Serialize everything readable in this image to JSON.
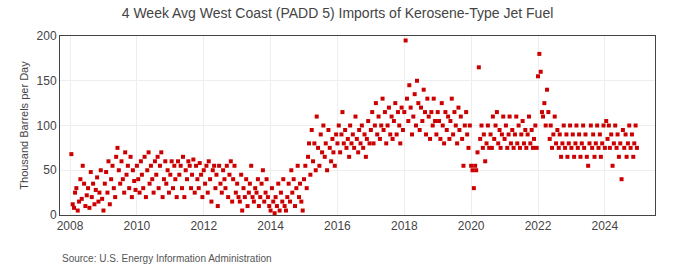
{
  "chart_data": {
    "type": "scatter",
    "title": "4 Week Avg West Coast (PADD 5) Imports of Kerosene-Type Jet Fuel",
    "ylabel": "Thousand Barrels per Day",
    "annotations": [
      "Source: U.S. Energy Information Administration"
    ],
    "color": "#CC0000",
    "marker": "square",
    "grid": true,
    "xlim": [
      2007.7,
      2025.5
    ],
    "ylim": [
      0,
      200
    ],
    "xticks": [
      2008,
      2010,
      2012,
      2014,
      2016,
      2018,
      2020,
      2022,
      2024
    ],
    "yticks": [
      0,
      50,
      100,
      150,
      200
    ],
    "x": [
      2008.04,
      2008.08,
      2008.12,
      2008.15,
      2008.19,
      2008.23,
      2008.27,
      2008.31,
      2008.35,
      2008.38,
      2008.42,
      2008.46,
      2008.5,
      2008.54,
      2008.58,
      2008.62,
      2008.65,
      2008.69,
      2008.73,
      2008.77,
      2008.81,
      2008.85,
      2008.88,
      2008.92,
      2008.96,
      2009.0,
      2009.04,
      2009.08,
      2009.12,
      2009.15,
      2009.19,
      2009.23,
      2009.27,
      2009.31,
      2009.35,
      2009.38,
      2009.42,
      2009.46,
      2009.5,
      2009.54,
      2009.58,
      2009.62,
      2009.65,
      2009.69,
      2009.73,
      2009.77,
      2009.81,
      2009.85,
      2009.88,
      2009.92,
      2009.96,
      2010.0,
      2010.04,
      2010.08,
      2010.12,
      2010.15,
      2010.19,
      2010.23,
      2010.27,
      2010.31,
      2010.35,
      2010.38,
      2010.42,
      2010.46,
      2010.5,
      2010.54,
      2010.58,
      2010.62,
      2010.65,
      2010.69,
      2010.73,
      2010.77,
      2010.81,
      2010.85,
      2010.88,
      2010.92,
      2010.96,
      2011.0,
      2011.04,
      2011.08,
      2011.12,
      2011.15,
      2011.19,
      2011.23,
      2011.27,
      2011.31,
      2011.35,
      2011.38,
      2011.42,
      2011.46,
      2011.5,
      2011.54,
      2011.58,
      2011.62,
      2011.65,
      2011.69,
      2011.73,
      2011.77,
      2011.81,
      2011.85,
      2011.88,
      2011.92,
      2011.96,
      2012.0,
      2012.04,
      2012.08,
      2012.12,
      2012.15,
      2012.19,
      2012.23,
      2012.27,
      2012.31,
      2012.35,
      2012.38,
      2012.42,
      2012.46,
      2012.5,
      2012.54,
      2012.58,
      2012.62,
      2012.65,
      2012.69,
      2012.73,
      2012.77,
      2012.81,
      2012.85,
      2012.88,
      2012.92,
      2012.96,
      2013.0,
      2013.04,
      2013.08,
      2013.12,
      2013.15,
      2013.19,
      2013.23,
      2013.27,
      2013.31,
      2013.35,
      2013.38,
      2013.42,
      2013.46,
      2013.5,
      2013.54,
      2013.58,
      2013.62,
      2013.65,
      2013.69,
      2013.73,
      2013.77,
      2013.81,
      2013.85,
      2013.88,
      2013.92,
      2013.96,
      2014.0,
      2014.04,
      2014.08,
      2014.12,
      2014.15,
      2014.19,
      2014.23,
      2014.27,
      2014.31,
      2014.35,
      2014.38,
      2014.42,
      2014.46,
      2014.5,
      2014.54,
      2014.58,
      2014.62,
      2014.65,
      2014.69,
      2014.73,
      2014.77,
      2014.81,
      2014.85,
      2014.88,
      2014.92,
      2014.96,
      2015.0,
      2015.04,
      2015.08,
      2015.12,
      2015.15,
      2015.19,
      2015.23,
      2015.27,
      2015.31,
      2015.35,
      2015.38,
      2015.42,
      2015.46,
      2015.5,
      2015.54,
      2015.58,
      2015.62,
      2015.65,
      2015.69,
      2015.73,
      2015.77,
      2015.81,
      2015.85,
      2015.88,
      2015.92,
      2015.96,
      2016.0,
      2016.04,
      2016.08,
      2016.12,
      2016.15,
      2016.19,
      2016.23,
      2016.27,
      2016.31,
      2016.35,
      2016.38,
      2016.42,
      2016.46,
      2016.5,
      2016.54,
      2016.58,
      2016.62,
      2016.65,
      2016.69,
      2016.73,
      2016.77,
      2016.81,
      2016.85,
      2016.88,
      2016.92,
      2016.96,
      2017.0,
      2017.04,
      2017.08,
      2017.12,
      2017.15,
      2017.19,
      2017.23,
      2017.27,
      2017.31,
      2017.35,
      2017.38,
      2017.42,
      2017.46,
      2017.5,
      2017.54,
      2017.58,
      2017.62,
      2017.65,
      2017.69,
      2017.73,
      2017.77,
      2017.81,
      2017.85,
      2017.88,
      2017.92,
      2017.96,
      2018.0,
      2018.04,
      2018.08,
      2018.12,
      2018.15,
      2018.19,
      2018.23,
      2018.27,
      2018.31,
      2018.35,
      2018.38,
      2018.42,
      2018.46,
      2018.5,
      2018.54,
      2018.58,
      2018.62,
      2018.65,
      2018.69,
      2018.73,
      2018.77,
      2018.81,
      2018.85,
      2018.88,
      2018.92,
      2018.96,
      2019.0,
      2019.04,
      2019.08,
      2019.12,
      2019.15,
      2019.19,
      2019.23,
      2019.27,
      2019.31,
      2019.35,
      2019.38,
      2019.42,
      2019.46,
      2019.5,
      2019.54,
      2019.58,
      2019.62,
      2019.65,
      2019.69,
      2019.73,
      2019.77,
      2019.81,
      2019.85,
      2019.88,
      2019.92,
      2019.96,
      2020.0,
      2020.04,
      2020.08,
      2020.12,
      2020.15,
      2020.19,
      2020.23,
      2020.27,
      2020.31,
      2020.35,
      2020.38,
      2020.42,
      2020.46,
      2020.5,
      2020.54,
      2020.58,
      2020.62,
      2020.65,
      2020.69,
      2020.73,
      2020.77,
      2020.81,
      2020.85,
      2020.88,
      2020.92,
      2020.96,
      2021.0,
      2021.04,
      2021.08,
      2021.12,
      2021.15,
      2021.19,
      2021.23,
      2021.27,
      2021.31,
      2021.35,
      2021.38,
      2021.42,
      2021.46,
      2021.5,
      2021.54,
      2021.58,
      2021.62,
      2021.65,
      2021.69,
      2021.73,
      2021.77,
      2021.81,
      2021.85,
      2021.88,
      2021.92,
      2021.96,
      2022.0,
      2022.04,
      2022.08,
      2022.12,
      2022.15,
      2022.19,
      2022.23,
      2022.27,
      2022.31,
      2022.35,
      2022.38,
      2022.42,
      2022.46,
      2022.5,
      2022.54,
      2022.58,
      2022.62,
      2022.65,
      2022.69,
      2022.73,
      2022.77,
      2022.81,
      2022.85,
      2022.88,
      2022.92,
      2022.96,
      2023.0,
      2023.04,
      2023.08,
      2023.12,
      2023.15,
      2023.19,
      2023.23,
      2023.27,
      2023.31,
      2023.35,
      2023.38,
      2023.42,
      2023.46,
      2023.5,
      2023.54,
      2023.58,
      2023.62,
      2023.65,
      2023.69,
      2023.73,
      2023.77,
      2023.81,
      2023.85,
      2023.88,
      2023.92,
      2023.96,
      2024.0,
      2024.04,
      2024.08,
      2024.12,
      2024.15,
      2024.19,
      2024.23,
      2024.27,
      2024.31,
      2024.35,
      2024.38,
      2024.42,
      2024.46,
      2024.5,
      2024.54,
      2024.58,
      2024.62,
      2024.65,
      2024.69,
      2024.73,
      2024.77,
      2024.81,
      2024.85,
      2024.88,
      2024.92,
      2024.96
    ],
    "values": [
      68,
      12,
      8,
      25,
      30,
      5,
      15,
      40,
      18,
      55,
      35,
      10,
      22,
      30,
      8,
      48,
      20,
      35,
      12,
      28,
      42,
      15,
      25,
      50,
      18,
      5,
      35,
      48,
      25,
      60,
      12,
      40,
      55,
      30,
      20,
      65,
      75,
      50,
      35,
      60,
      40,
      25,
      70,
      45,
      55,
      30,
      65,
      20,
      50,
      38,
      28,
      55,
      40,
      25,
      60,
      45,
      30,
      65,
      20,
      50,
      70,
      35,
      55,
      40,
      25,
      60,
      45,
      65,
      30,
      55,
      70,
      20,
      40,
      60,
      35,
      50,
      25,
      45,
      60,
      30,
      55,
      40,
      20,
      60,
      45,
      55,
      30,
      65,
      20,
      50,
      40,
      60,
      55,
      30,
      45,
      62,
      25,
      55,
      40,
      30,
      58,
      45,
      20,
      50,
      35,
      55,
      25,
      60,
      40,
      15,
      50,
      55,
      30,
      45,
      10,
      55,
      35,
      25,
      50,
      40,
      30,
      55,
      20,
      45,
      60,
      15,
      40,
      55,
      25,
      35,
      20,
      15,
      45,
      5,
      30,
      20,
      40,
      10,
      25,
      35,
      55,
      20,
      15,
      30,
      25,
      40,
      10,
      20,
      35,
      50,
      15,
      25,
      40,
      20,
      10,
      5,
      30,
      15,
      2,
      20,
      10,
      35,
      5,
      25,
      15,
      40,
      10,
      5,
      20,
      35,
      15,
      50,
      25,
      40,
      10,
      30,
      55,
      20,
      35,
      15,
      5,
      40,
      55,
      30,
      65,
      80,
      45,
      95,
      60,
      80,
      50,
      110,
      75,
      55,
      90,
      70,
      100,
      65,
      80,
      50,
      95,
      75,
      60,
      85,
      70,
      55,
      90,
      80,
      100,
      70,
      90,
      115,
      80,
      95,
      75,
      85,
      65,
      100,
      80,
      90,
      75,
      110,
      85,
      70,
      95,
      80,
      100,
      75,
      90,
      65,
      85,
      105,
      80,
      95,
      115,
      80,
      100,
      125,
      90,
      110,
      85,
      100,
      130,
      95,
      115,
      80,
      100,
      120,
      90,
      110,
      85,
      105,
      125,
      90,
      115,
      100,
      80,
      120,
      95,
      115,
      195,
      130,
      105,
      145,
      120,
      90,
      110,
      135,
      100,
      150,
      125,
      95,
      120,
      105,
      140,
      115,
      90,
      130,
      110,
      85,
      115,
      100,
      130,
      105,
      90,
      115,
      105,
      85,
      125,
      100,
      80,
      115,
      95,
      110,
      85,
      105,
      130,
      90,
      115,
      100,
      80,
      120,
      95,
      110,
      85,
      55,
      100,
      115,
      90,
      75,
      100,
      55,
      50,
      30,
      55,
      50,
      70,
      165,
      85,
      100,
      75,
      90,
      60,
      80,
      100,
      75,
      90,
      75,
      110,
      85,
      100,
      115,
      80,
      95,
      75,
      90,
      110,
      85,
      100,
      75,
      90,
      110,
      80,
      95,
      75,
      90,
      110,
      80,
      100,
      75,
      90,
      105,
      80,
      95,
      75,
      90,
      110,
      80,
      95,
      75,
      85,
      100,
      75,
      155,
      180,
      160,
      115,
      110,
      125,
      100,
      140,
      115,
      85,
      100,
      75,
      90,
      110,
      80,
      95,
      75,
      90,
      65,
      80,
      100,
      75,
      90,
      65,
      80,
      100,
      75,
      90,
      65,
      80,
      100,
      75,
      90,
      65,
      80,
      100,
      75,
      90,
      65,
      55,
      80,
      100,
      75,
      90,
      65,
      80,
      100,
      75,
      90,
      65,
      80,
      100,
      75,
      105,
      85,
      100,
      75,
      90,
      55,
      80,
      100,
      75,
      90,
      65,
      80,
      40,
      95,
      75,
      90,
      65,
      80,
      100,
      75,
      90,
      65,
      80,
      100,
      75
    ]
  }
}
